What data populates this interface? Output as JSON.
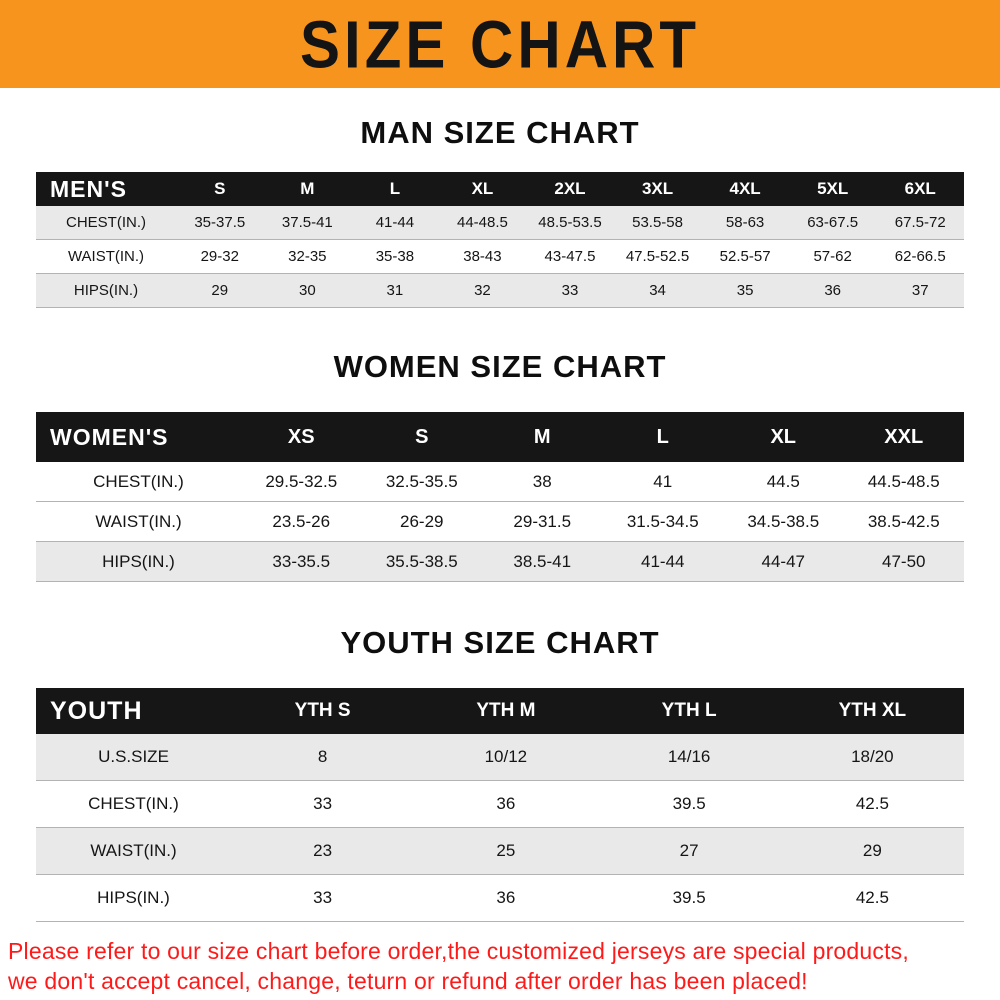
{
  "banner": {
    "title": "SIZE CHART",
    "bg_color": "#f7941d",
    "text_color": "#141414"
  },
  "sections": [
    {
      "heading": "MAN SIZE CHART",
      "table": {
        "header": [
          "MEN'S",
          "S",
          "M",
          "L",
          "XL",
          "2XL",
          "3XL",
          "4XL",
          "5XL",
          "6XL"
        ],
        "rows": [
          [
            "CHEST(IN.)",
            "35-37.5",
            "37.5-41",
            "41-44",
            "44-48.5",
            "48.5-53.5",
            "53.5-58",
            "58-63",
            "63-67.5",
            "67.5-72"
          ],
          [
            "WAIST(IN.)",
            "29-32",
            "32-35",
            "35-38",
            "38-43",
            "43-47.5",
            "47.5-52.5",
            "52.5-57",
            "57-62",
            "62-66.5"
          ],
          [
            "HIPS(IN.)",
            "29",
            "30",
            "31",
            "32",
            "33",
            "34",
            "35",
            "36",
            "37"
          ]
        ]
      }
    },
    {
      "heading": "WOMEN SIZE CHART",
      "table": {
        "header": [
          "WOMEN'S",
          "XS",
          "S",
          "M",
          "L",
          "XL",
          "XXL"
        ],
        "rows": [
          [
            "CHEST(IN.)",
            "29.5-32.5",
            "32.5-35.5",
            "38",
            "41",
            "44.5",
            "44.5-48.5"
          ],
          [
            "WAIST(IN.)",
            "23.5-26",
            "26-29",
            "29-31.5",
            "31.5-34.5",
            "34.5-38.5",
            "38.5-42.5"
          ],
          [
            "HIPS(IN.)",
            "33-35.5",
            "35.5-38.5",
            "38.5-41",
            "41-44",
            "44-47",
            "47-50"
          ]
        ]
      }
    },
    {
      "heading": "YOUTH SIZE CHART",
      "table": {
        "header": [
          "YOUTH",
          "YTH S",
          "YTH M",
          "YTH L",
          "YTH XL"
        ],
        "rows": [
          [
            "U.S.SIZE",
            "8",
            "10/12",
            "14/16",
            "18/20"
          ],
          [
            "CHEST(IN.)",
            "33",
            "36",
            "39.5",
            "42.5"
          ],
          [
            "WAIST(IN.)",
            "23",
            "25",
            "27",
            "29"
          ],
          [
            "HIPS(IN.)",
            "33",
            "36",
            "39.5",
            "42.5"
          ]
        ]
      }
    }
  ],
  "footer": {
    "lines": [
      "Please refer to our size chart before order,the customized jerseys are special products,",
      "we don't accept cancel, change, teturn or refund after order has been placed!"
    ],
    "color": "#ff1a1a"
  }
}
